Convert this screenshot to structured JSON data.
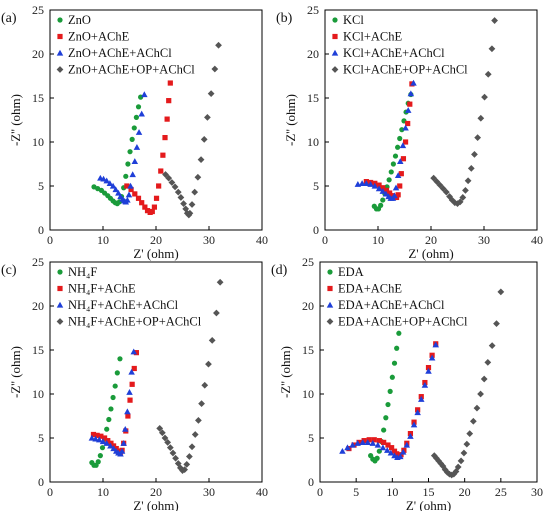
{
  "chart_data": [
    {
      "type": "scatter",
      "panel_label": "(a)",
      "xlabel": "Z' (ohm)",
      "ylabel": "-Z'' (ohm)",
      "xlim": [
        0,
        40
      ],
      "ylim": [
        0,
        25
      ],
      "xticks": [
        0,
        10,
        20,
        30,
        40
      ],
      "yticks": [
        0,
        5,
        10,
        15,
        20,
        25
      ],
      "legend_position": "top-left",
      "series": [
        {
          "name": "ZnO",
          "marker": "circle",
          "color": "#1a9b3a",
          "x": [
            8.3,
            9.0,
            9.7,
            10.3,
            10.9,
            11.4,
            11.9,
            12.3,
            12.7,
            13.1,
            13.5,
            13.9,
            14.3,
            14.7,
            15.1,
            15.5,
            15.9,
            16.3,
            16.7,
            17.1
          ],
          "y": [
            4.9,
            4.7,
            4.5,
            4.2,
            3.9,
            3.6,
            3.3,
            3.1,
            3.0,
            3.2,
            3.8,
            4.8,
            6.1,
            7.5,
            8.9,
            10.3,
            11.6,
            12.8,
            14.0,
            15.1
          ]
        },
        {
          "name": "ZnO+AChE",
          "marker": "square",
          "color": "#e41a1c",
          "x": [
            14.5,
            15.3,
            16.0,
            16.7,
            17.3,
            17.9,
            18.4,
            18.9,
            19.3,
            19.7,
            20.1,
            20.5,
            20.9,
            21.3,
            21.7,
            22.1,
            22.4,
            22.7
          ],
          "y": [
            5.0,
            4.6,
            4.1,
            3.6,
            3.1,
            2.6,
            2.2,
            2.0,
            2.1,
            2.6,
            3.6,
            5.0,
            6.7,
            8.5,
            10.5,
            12.6,
            14.7,
            16.7
          ]
        },
        {
          "name": "ZnO+AChE+AChCl",
          "marker": "triangle",
          "color": "#1f3fd8",
          "x": [
            9.5,
            10.1,
            10.7,
            11.3,
            11.9,
            12.4,
            12.9,
            13.3,
            13.7,
            14.0,
            14.3,
            14.6,
            14.9,
            15.2,
            15.6,
            16.0,
            16.4,
            16.8,
            17.3,
            17.8
          ],
          "y": [
            5.9,
            5.8,
            5.6,
            5.3,
            5.0,
            4.6,
            4.2,
            3.8,
            3.5,
            3.3,
            3.2,
            3.4,
            4.0,
            5.0,
            6.3,
            7.8,
            9.4,
            11.1,
            13.2,
            15.4
          ]
        },
        {
          "name": "ZnO+AChE+OP+AChCl",
          "marker": "diamond",
          "color": "#555555",
          "x": [
            21.8,
            22.4,
            23.0,
            23.6,
            24.2,
            24.7,
            25.2,
            25.6,
            25.9,
            26.2,
            26.4,
            26.8,
            27.3,
            27.9,
            28.5,
            29.1,
            29.7,
            30.4,
            31.1,
            31.8
          ],
          "y": [
            6.3,
            5.9,
            5.4,
            4.9,
            4.3,
            3.7,
            3.0,
            2.4,
            1.9,
            1.7,
            1.9,
            2.9,
            4.3,
            6.0,
            8.0,
            10.3,
            12.8,
            15.5,
            18.3,
            21.0
          ]
        }
      ]
    },
    {
      "type": "scatter",
      "panel_label": "(b)",
      "xlabel": "Z' (ohm)",
      "ylabel": "-Z'' (ohm)",
      "xlim": [
        0,
        40
      ],
      "ylim": [
        0,
        25
      ],
      "xticks": [
        0,
        10,
        20,
        30,
        40
      ],
      "yticks": [
        0,
        5,
        10,
        15,
        20,
        25
      ],
      "legend_position": "top-left",
      "series": [
        {
          "name": "KCl",
          "marker": "circle",
          "color": "#1a9b3a",
          "x": [
            9.3,
            9.7,
            10.1,
            10.5,
            10.9,
            11.3,
            11.7,
            12.1,
            12.5,
            12.9,
            13.3,
            13.7,
            14.1,
            14.5,
            14.9,
            15.3,
            15.7,
            16.2
          ],
          "y": [
            2.7,
            2.4,
            2.4,
            2.8,
            3.4,
            4.1,
            4.9,
            5.7,
            6.6,
            7.5,
            8.4,
            9.4,
            10.4,
            11.4,
            12.4,
            13.4,
            14.4,
            15.4
          ]
        },
        {
          "name": "KCl+AChE",
          "marker": "square",
          "color": "#e41a1c",
          "x": [
            7.8,
            8.6,
            9.4,
            10.2,
            10.9,
            11.6,
            12.2,
            12.7,
            13.1,
            13.5,
            13.8,
            14.1,
            14.4,
            14.8,
            15.2,
            15.6,
            16.0,
            16.4
          ],
          "y": [
            5.5,
            5.4,
            5.3,
            5.1,
            4.8,
            4.5,
            4.2,
            3.9,
            3.7,
            3.7,
            4.0,
            5.0,
            6.4,
            8.1,
            10.0,
            12.1,
            14.3,
            16.6
          ]
        },
        {
          "name": "KCl+AChE+AChCl",
          "marker": "triangle",
          "color": "#1f3fd8",
          "x": [
            6.2,
            7.0,
            7.8,
            8.6,
            9.4,
            10.2,
            10.9,
            11.5,
            12.0,
            12.4,
            12.8,
            13.1,
            13.4,
            13.8,
            14.2,
            14.7,
            15.2,
            15.7,
            16.2,
            16.7
          ],
          "y": [
            5.2,
            5.3,
            5.3,
            5.2,
            5.0,
            4.7,
            4.4,
            4.1,
            3.8,
            3.6,
            3.6,
            3.9,
            4.8,
            6.2,
            7.8,
            9.6,
            11.6,
            13.6,
            15.5,
            16.7
          ]
        },
        {
          "name": "KCl+AChE+OP+AChCl",
          "marker": "diamond",
          "color": "#555555",
          "x": [
            20.5,
            21.1,
            21.7,
            22.3,
            22.9,
            23.5,
            24.0,
            24.5,
            25.0,
            25.5,
            26.0,
            26.5,
            27.0,
            27.6,
            28.2,
            28.8,
            29.4,
            30.1,
            30.8,
            31.5,
            32.0
          ],
          "y": [
            5.9,
            5.5,
            5.1,
            4.7,
            4.3,
            3.8,
            3.4,
            3.1,
            3.0,
            3.2,
            3.7,
            4.5,
            5.6,
            7.0,
            8.6,
            10.5,
            12.7,
            15.1,
            17.7,
            20.6,
            23.8
          ]
        }
      ]
    },
    {
      "type": "scatter",
      "panel_label": "(c)",
      "xlabel": "Z' (ohm)",
      "ylabel": "-Z'' (ohm)",
      "xlim": [
        0,
        40
      ],
      "ylim": [
        0,
        25
      ],
      "xticks": [
        0,
        10,
        20,
        30,
        40
      ],
      "yticks": [
        0,
        5,
        10,
        15,
        20,
        25
      ],
      "legend_position": "top-left",
      "series": [
        {
          "name": "NH₄F",
          "marker": "circle",
          "color": "#1a9b3a",
          "x": [
            7.9,
            8.3,
            8.7,
            9.1,
            9.5,
            9.9,
            10.3,
            10.7,
            11.1,
            11.5,
            11.9,
            12.3,
            12.7,
            13.2
          ],
          "y": [
            2.2,
            1.9,
            1.9,
            2.3,
            3.0,
            3.9,
            4.9,
            6.0,
            7.1,
            8.3,
            9.6,
            10.9,
            12.4,
            14.0
          ]
        },
        {
          "name": "NH₄F+AChE",
          "marker": "square",
          "color": "#e41a1c",
          "x": [
            8.2,
            8.9,
            9.6,
            10.3,
            10.9,
            11.5,
            12.0,
            12.5,
            12.9,
            13.3,
            13.6,
            13.9,
            14.3,
            14.7,
            15.1,
            15.5,
            15.9,
            16.3
          ],
          "y": [
            5.4,
            5.3,
            5.2,
            5.0,
            4.7,
            4.4,
            4.1,
            3.8,
            3.5,
            3.4,
            3.6,
            4.4,
            5.8,
            7.5,
            9.3,
            11.1,
            12.9,
            14.7
          ]
        },
        {
          "name": "NH₄F+AChE+AChCl",
          "marker": "triangle",
          "color": "#1f3fd8",
          "x": [
            7.9,
            8.6,
            9.3,
            10.0,
            10.7,
            11.4,
            12.0,
            12.5,
            12.9,
            13.3,
            13.6,
            13.9,
            14.2,
            14.6,
            15.0,
            15.4,
            15.8
          ],
          "y": [
            5.0,
            4.9,
            4.8,
            4.6,
            4.4,
            4.1,
            3.8,
            3.5,
            3.3,
            3.2,
            3.5,
            4.4,
            6.0,
            8.0,
            10.2,
            12.5,
            14.8
          ]
        },
        {
          "name": "NH₄F+AChE+OP+AChCl",
          "marker": "diamond",
          "color": "#555555",
          "x": [
            20.7,
            21.2,
            21.7,
            22.2,
            22.7,
            23.2,
            23.7,
            24.2,
            24.6,
            25.0,
            25.4,
            25.8,
            26.3,
            26.8,
            27.4,
            28.0,
            28.6,
            29.2,
            29.9,
            30.6,
            31.4,
            32.1
          ],
          "y": [
            6.1,
            5.6,
            5.0,
            4.5,
            3.9,
            3.3,
            2.7,
            2.1,
            1.6,
            1.3,
            1.4,
            2.0,
            2.9,
            4.0,
            5.4,
            7.0,
            8.9,
            11.0,
            13.4,
            16.1,
            19.2,
            22.7
          ]
        }
      ]
    },
    {
      "type": "scatter",
      "panel_label": "(d)",
      "xlabel": "Z' (ohm)",
      "ylabel": "-Z'' (ohm)",
      "xlim": [
        0,
        30
      ],
      "ylim": [
        0,
        25
      ],
      "xticks": [
        0,
        5,
        10,
        15,
        20,
        25,
        30
      ],
      "yticks": [
        0,
        5,
        10,
        15,
        20,
        25
      ],
      "legend_position": "top-left",
      "series": [
        {
          "name": "EDA",
          "marker": "circle",
          "color": "#1a9b3a",
          "x": [
            7.0,
            7.3,
            7.6,
            7.9,
            8.2,
            8.5,
            8.8,
            9.1,
            9.4,
            9.7,
            10.0,
            10.3,
            10.6,
            10.9
          ],
          "y": [
            3.0,
            2.6,
            2.4,
            2.7,
            3.5,
            4.6,
            5.9,
            7.3,
            8.8,
            10.3,
            11.9,
            13.5,
            15.2,
            16.9
          ]
        },
        {
          "name": "EDA+AChE",
          "marker": "square",
          "color": "#e41a1c",
          "x": [
            4.0,
            4.7,
            5.4,
            6.1,
            6.8,
            7.5,
            8.2,
            8.8,
            9.4,
            9.9,
            10.3,
            10.6,
            10.9,
            11.2,
            11.6,
            12.0,
            12.5,
            13.0,
            13.5,
            14.0,
            14.5,
            15.0,
            15.5,
            16.0
          ],
          "y": [
            3.8,
            4.2,
            4.5,
            4.7,
            4.8,
            4.8,
            4.7,
            4.5,
            4.2,
            3.9,
            3.5,
            3.2,
            3.0,
            3.1,
            3.6,
            4.4,
            5.5,
            6.8,
            8.2,
            9.7,
            11.3,
            13.0,
            14.4,
            15.7
          ]
        },
        {
          "name": "EDA+AChE+AChCl",
          "marker": "triangle",
          "color": "#1f3fd8",
          "x": [
            3.1,
            3.8,
            4.5,
            5.2,
            5.9,
            6.6,
            7.3,
            8.0,
            8.7,
            9.3,
            9.8,
            10.3,
            10.7,
            11.1,
            11.5,
            12.0,
            12.5,
            13.0,
            13.5,
            14.0,
            14.5,
            15.0,
            15.5,
            16.0
          ],
          "y": [
            3.5,
            3.9,
            4.2,
            4.4,
            4.5,
            4.5,
            4.4,
            4.2,
            3.9,
            3.6,
            3.3,
            3.0,
            2.8,
            2.9,
            3.4,
            4.2,
            5.2,
            6.5,
            7.9,
            9.4,
            11.0,
            12.6,
            14.1,
            15.6
          ]
        },
        {
          "name": "EDA+AChE+OP+AChCl",
          "marker": "diamond",
          "color": "#555555",
          "x": [
            15.8,
            16.1,
            16.4,
            16.7,
            17.0,
            17.3,
            17.6,
            17.9,
            18.2,
            18.5,
            18.8,
            19.1,
            19.5,
            19.9,
            20.3,
            20.7,
            21.2,
            21.7,
            22.2,
            22.7,
            23.2,
            23.8,
            24.4,
            25.0
          ],
          "y": [
            3.0,
            2.7,
            2.4,
            2.1,
            1.8,
            1.4,
            1.1,
            0.9,
            0.8,
            0.9,
            1.2,
            1.7,
            2.4,
            3.3,
            4.3,
            5.5,
            6.9,
            8.4,
            10.0,
            11.7,
            13.6,
            15.5,
            18.0,
            21.6
          ]
        }
      ]
    }
  ]
}
